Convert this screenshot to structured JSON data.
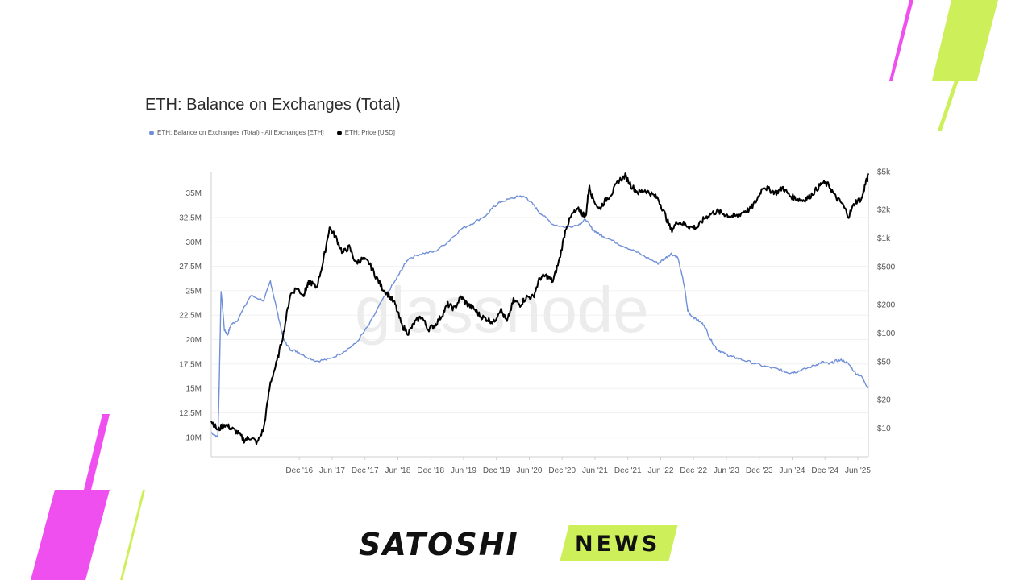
{
  "chart": {
    "title": "ETH: Balance on Exchanges (Total)",
    "legend": [
      {
        "label": "ETH: Balance on Exchanges (Total) - All Exchanges [ETH]",
        "color": "#6f8fd8"
      },
      {
        "label": "ETH: Price [USD]",
        "color": "#000000"
      }
    ],
    "watermark": "glassnode"
  },
  "brand": {
    "name_left": "SATOSHI",
    "name_right": "NEWS"
  },
  "colors": {
    "balance_line": "#6f8fd8",
    "price_line": "#000000",
    "accent_pink": "#f04ff0",
    "accent_lime": "#cdf05a"
  },
  "chart_data": {
    "type": "line",
    "title": "ETH: Balance on Exchanges (Total)",
    "x_ticks": [
      "Dec '16",
      "Jun '17",
      "Dec '17",
      "Jun '18",
      "Dec '18",
      "Jun '19",
      "Dec '19",
      "Jun '20",
      "Dec '20",
      "Jun '21",
      "Dec '21",
      "Jun '22",
      "Dec '22",
      "Jun '23",
      "Dec '23",
      "Jun '24",
      "Dec '24",
      "Jun '25"
    ],
    "xlim": [
      2015.6,
      2025.6
    ],
    "left_axis": {
      "ticks": [
        10,
        12.5,
        15,
        17.5,
        20,
        22.5,
        25,
        27.5,
        30,
        32.5,
        35
      ],
      "tick_labels": [
        "10M",
        "12.5M",
        "15M",
        "17.5M",
        "20M",
        "22.5M",
        "25M",
        "27.5M",
        "30M",
        "32.5M",
        "35M"
      ],
      "ylim": [
        8.0,
        37.2
      ],
      "unit": "M ETH"
    },
    "right_axis": {
      "scale": "log",
      "ticks": [
        10,
        20,
        50,
        100,
        200,
        500,
        1000,
        2000,
        5000
      ],
      "tick_labels": [
        "$10",
        "$20",
        "$50",
        "$100",
        "$200",
        "$500",
        "$1k",
        "$2k",
        "$5k"
      ],
      "ylim": [
        5,
        5000
      ]
    },
    "series": [
      {
        "name": "ETH: Balance on Exchanges (Total) - All Exchanges [ETH]",
        "axis": "left",
        "color": "#6f8fd8",
        "x": [
          2015.6,
          2015.7,
          2015.72,
          2015.75,
          2015.8,
          2015.85,
          2015.9,
          2016.0,
          2016.2,
          2016.4,
          2016.5,
          2016.6,
          2016.7,
          2016.75,
          2016.8,
          2016.9,
          2017.0,
          2017.2,
          2017.4,
          2017.6,
          2017.8,
          2018.0,
          2018.2,
          2018.4,
          2018.5,
          2018.6,
          2018.8,
          2019.0,
          2019.2,
          2019.4,
          2019.6,
          2019.8,
          2019.9,
          2020.0,
          2020.2,
          2020.3,
          2020.4,
          2020.5,
          2020.6,
          2020.8,
          2021.0,
          2021.2,
          2021.3,
          2021.4,
          2021.5,
          2021.6,
          2021.8,
          2022.0,
          2022.2,
          2022.4,
          2022.5,
          2022.6,
          2022.7,
          2022.8,
          2022.85,
          2022.9,
          2023.0,
          2023.1,
          2023.2,
          2023.3,
          2023.4,
          2023.5,
          2023.6,
          2023.8,
          2024.0,
          2024.2,
          2024.3,
          2024.4,
          2024.5,
          2024.6,
          2024.8,
          2024.9,
          2025.0,
          2025.1,
          2025.2,
          2025.3,
          2025.4,
          2025.5,
          2025.6
        ],
        "y": [
          10.5,
          10.0,
          15.0,
          25.0,
          21.0,
          20.5,
          21.5,
          22.0,
          24.5,
          24.0,
          26.0,
          23.0,
          20.0,
          19.5,
          19.0,
          18.8,
          18.4,
          17.8,
          18.0,
          18.7,
          19.6,
          21.5,
          24.0,
          26.0,
          27.2,
          28.3,
          28.8,
          29.0,
          30.0,
          31.3,
          32.0,
          32.8,
          33.6,
          34.1,
          34.5,
          34.7,
          34.5,
          33.8,
          33.0,
          31.8,
          31.5,
          31.8,
          32.3,
          31.3,
          30.8,
          30.5,
          29.8,
          29.2,
          28.5,
          27.8,
          28.3,
          28.8,
          28.4,
          25.5,
          23.0,
          22.5,
          22.0,
          21.5,
          20.0,
          19.0,
          18.6,
          18.3,
          18.1,
          17.7,
          17.3,
          17.0,
          16.8,
          16.6,
          16.7,
          16.9,
          17.4,
          17.7,
          17.5,
          17.8,
          17.9,
          17.5,
          16.6,
          16.2,
          15.0
        ]
      },
      {
        "name": "ETH: Price [USD]",
        "axis": "right",
        "color": "#000000",
        "x": [
          2015.6,
          2015.7,
          2015.8,
          2015.9,
          2016.0,
          2016.1,
          2016.2,
          2016.3,
          2016.4,
          2016.5,
          2016.6,
          2016.7,
          2016.8,
          2016.9,
          2017.0,
          2017.05,
          2017.1,
          2017.2,
          2017.3,
          2017.4,
          2017.5,
          2017.6,
          2017.7,
          2017.8,
          2017.9,
          2018.0,
          2018.1,
          2018.2,
          2018.3,
          2018.4,
          2018.5,
          2018.6,
          2018.7,
          2018.8,
          2018.9,
          2019.0,
          2019.1,
          2019.2,
          2019.3,
          2019.4,
          2019.5,
          2019.6,
          2019.7,
          2019.8,
          2019.9,
          2020.0,
          2020.1,
          2020.2,
          2020.3,
          2020.4,
          2020.5,
          2020.6,
          2020.7,
          2020.8,
          2020.9,
          2021.0,
          2021.1,
          2021.2,
          2021.25,
          2021.3,
          2021.35,
          2021.4,
          2021.5,
          2021.6,
          2021.7,
          2021.8,
          2021.9,
          2022.0,
          2022.1,
          2022.2,
          2022.3,
          2022.4,
          2022.5,
          2022.6,
          2022.7,
          2022.8,
          2022.9,
          2023.0,
          2023.1,
          2023.2,
          2023.3,
          2023.4,
          2023.5,
          2023.6,
          2023.7,
          2023.8,
          2023.9,
          2024.0,
          2024.1,
          2024.2,
          2024.3,
          2024.4,
          2024.5,
          2024.6,
          2024.7,
          2024.8,
          2024.9,
          2025.0,
          2025.1,
          2025.2,
          2025.3,
          2025.4,
          2025.5,
          2025.55,
          2025.6
        ],
        "y": [
          12,
          9.5,
          11,
          10,
          9,
          7.5,
          8,
          7,
          10,
          30,
          50,
          100,
          250,
          300,
          250,
          300,
          350,
          300,
          550,
          1300,
          1000,
          700,
          800,
          550,
          600,
          550,
          400,
          300,
          250,
          200,
          120,
          100,
          130,
          150,
          110,
          120,
          150,
          200,
          180,
          240,
          200,
          180,
          150,
          140,
          130,
          180,
          130,
          220,
          200,
          240,
          240,
          380,
          400,
          350,
          600,
          1300,
          1800,
          2000,
          1800,
          1700,
          3500,
          2700,
          2000,
          2500,
          3000,
          4000,
          4500,
          3500,
          3000,
          3200,
          2900,
          2600,
          1800,
          1200,
          1500,
          1400,
          1300,
          1300,
          1600,
          1800,
          1900,
          1800,
          1700,
          1700,
          1900,
          2000,
          2500,
          3500,
          3200,
          3000,
          3400,
          2800,
          2600,
          2500,
          2700,
          3200,
          3800,
          3600,
          2700,
          2300,
          1700,
          2400,
          2600,
          3600,
          4600
        ]
      }
    ]
  }
}
